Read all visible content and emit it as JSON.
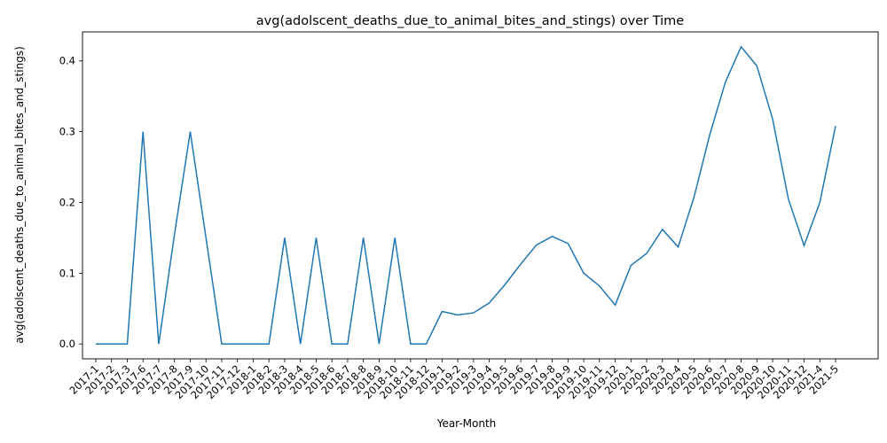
{
  "chart_data": {
    "type": "line",
    "title": "avg(adolscent_deaths_due_to_animal_bites_and_stings) over Time",
    "xlabel": "Year-Month",
    "ylabel": "avg(adolscent_deaths_due_to_animal_bites_and_stings)",
    "ylim": [
      -0.021,
      0.441
    ],
    "yticks": [
      0.0,
      0.1,
      0.2,
      0.3,
      0.4
    ],
    "ytick_labels": [
      "0.0",
      "0.1",
      "0.2",
      "0.3",
      "0.4"
    ],
    "line_color": "#1f77b4",
    "categories": [
      "2017-1",
      "2017-2",
      "2017-3",
      "2017-6",
      "2017-7",
      "2017-8",
      "2017-9",
      "2017-10",
      "2017-11",
      "2017-12",
      "2018-1",
      "2018-2",
      "2018-3",
      "2018-4",
      "2018-5",
      "2018-6",
      "2018-7",
      "2018-8",
      "2018-9",
      "2018-10",
      "2018-11",
      "2018-12",
      "2019-1",
      "2019-2",
      "2019-3",
      "2019-4",
      "2019-5",
      "2019-6",
      "2019-7",
      "2019-8",
      "2019-9",
      "2019-10",
      "2019-11",
      "2019-12",
      "2020-1",
      "2020-2",
      "2020-3",
      "2020-4",
      "2020-5",
      "2020-6",
      "2020-7",
      "2020-8",
      "2020-9",
      "2020-10",
      "2020-11",
      "2020-12",
      "2021-4",
      "2021-5"
    ],
    "values": [
      0,
      0,
      0,
      0.3,
      0,
      0.155,
      0.3,
      0.15,
      0,
      0,
      0,
      0,
      0.15,
      0,
      0.15,
      0,
      0,
      0.15,
      0,
      0.15,
      0,
      0,
      0.046,
      0.041,
      0.044,
      0.058,
      0.084,
      0.113,
      0.14,
      0.152,
      0.142,
      0.1,
      0.082,
      0.055,
      0.111,
      0.128,
      0.162,
      0.137,
      0.207,
      0.295,
      0.37,
      0.42,
      0.393,
      0.318,
      0.205,
      0.139,
      0.2,
      0.308
    ]
  }
}
